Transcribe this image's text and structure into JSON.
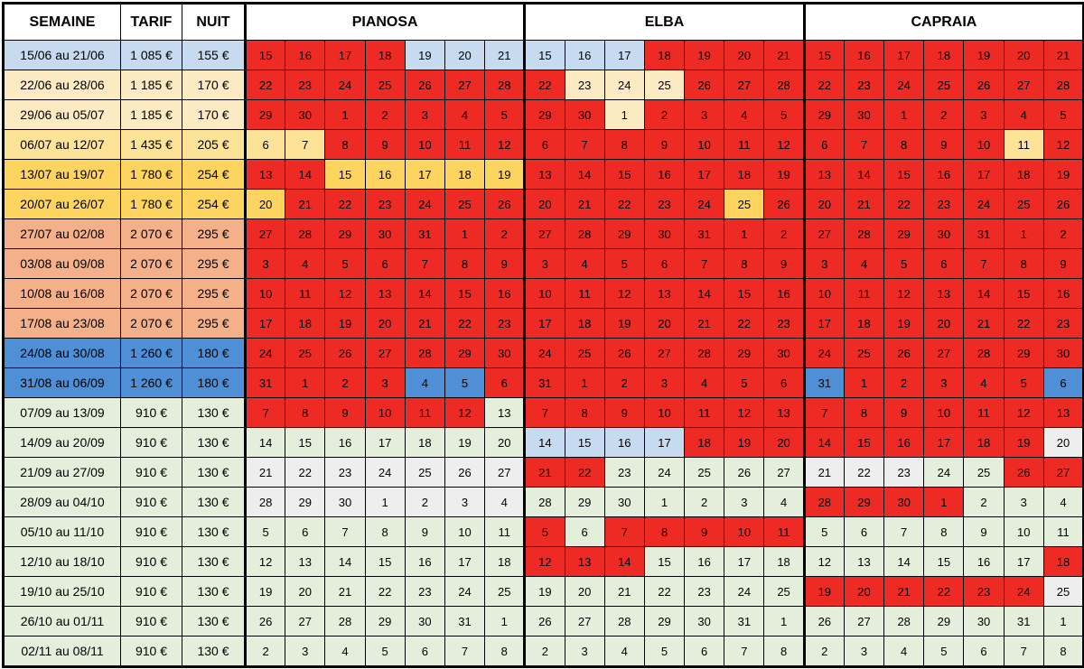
{
  "headers": {
    "week": "SEMAINE",
    "rate": "TARIF",
    "night": "NUIT"
  },
  "rooms": [
    "PIANOSA",
    "ELBA",
    "CAPRAIA"
  ],
  "colors": {
    "R": "#ee2a24",
    "lb": "#c6daf0",
    "cr": "#fcebc2",
    "y1": "#fde397",
    "y2": "#fcd45f",
    "or": "#f4b189",
    "bl": "#4f8fd6",
    "g": "#e3efda",
    "w": "#eeeeee"
  },
  "rows": [
    {
      "week": "15/06 au 21/06",
      "rate": "1 085 €",
      "night": "155 €",
      "color": "lb",
      "days": [
        "15",
        "16",
        "17",
        "18",
        "19",
        "20",
        "21"
      ],
      "status": [
        [
          "R",
          "R",
          "R",
          "R",
          "lb",
          "lb",
          "lb"
        ],
        [
          "lb",
          "lb",
          "lb",
          "R",
          "R",
          "R",
          "R"
        ],
        [
          "R",
          "R",
          "R",
          "R",
          "R",
          "R",
          "R"
        ]
      ]
    },
    {
      "week": "22/06 au 28/06",
      "rate": "1 185 €",
      "night": "170 €",
      "color": "cr",
      "days": [
        "22",
        "23",
        "24",
        "25",
        "26",
        "27",
        "28"
      ],
      "status": [
        [
          "R",
          "R",
          "R",
          "R",
          "R",
          "R",
          "R"
        ],
        [
          "R",
          "cr",
          "cr",
          "cr",
          "R",
          "R",
          "R"
        ],
        [
          "R",
          "R",
          "R",
          "R",
          "R",
          "R",
          "R"
        ]
      ]
    },
    {
      "week": "29/06 au 05/07",
      "rate": "1 185 €",
      "night": "170 €",
      "color": "cr",
      "days": [
        "29",
        "30",
        "1",
        "2",
        "3",
        "4",
        "5"
      ],
      "status": [
        [
          "R",
          "R",
          "R",
          "R",
          "R",
          "R",
          "R"
        ],
        [
          "R",
          "R",
          "cr",
          "R",
          "R",
          "R",
          "R"
        ],
        [
          "R",
          "R",
          "R",
          "R",
          "R",
          "R",
          "R"
        ]
      ]
    },
    {
      "week": "06/07 au 12/07",
      "rate": "1 435 €",
      "night": "205 €",
      "color": "y1",
      "days": [
        "6",
        "7",
        "8",
        "9",
        "10",
        "11",
        "12"
      ],
      "status": [
        [
          "y1",
          "y1",
          "R",
          "R",
          "R",
          "R",
          "R"
        ],
        [
          "R",
          "R",
          "R",
          "R",
          "R",
          "R",
          "R"
        ],
        [
          "R",
          "R",
          "R",
          "R",
          "R",
          "y1",
          "R"
        ]
      ]
    },
    {
      "week": "13/07 au 19/07",
      "rate": "1 780 €",
      "night": "254 €",
      "color": "y2",
      "days": [
        "13",
        "14",
        "15",
        "16",
        "17",
        "18",
        "19"
      ],
      "status": [
        [
          "R",
          "R",
          "y2",
          "y2",
          "y2",
          "y2",
          "y2"
        ],
        [
          "R",
          "R",
          "R",
          "R",
          "R",
          "R",
          "R"
        ],
        [
          "R",
          "R",
          "R",
          "R",
          "R",
          "R",
          "R"
        ]
      ]
    },
    {
      "week": "20/07 au 26/07",
      "rate": "1 780 €",
      "night": "254 €",
      "color": "y2",
      "days": [
        "20",
        "21",
        "22",
        "23",
        "24",
        "25",
        "26"
      ],
      "status": [
        [
          "y2",
          "R",
          "R",
          "R",
          "R",
          "R",
          "R"
        ],
        [
          "R",
          "R",
          "R",
          "R",
          "R",
          "y2",
          "R"
        ],
        [
          "R",
          "R",
          "R",
          "R",
          "R",
          "R",
          "R"
        ]
      ]
    },
    {
      "week": "27/07 au 02/08",
      "rate": "2 070 €",
      "night": "295 €",
      "color": "or",
      "days": [
        "27",
        "28",
        "29",
        "30",
        "31",
        "1",
        "2"
      ],
      "status": [
        [
          "R",
          "R",
          "R",
          "R",
          "R",
          "R",
          "R"
        ],
        [
          "R",
          "R",
          "R",
          "R",
          "R",
          "R",
          "R"
        ],
        [
          "R",
          "R",
          "R",
          "R",
          "R",
          "R",
          "R"
        ]
      ]
    },
    {
      "week": "03/08 au 09/08",
      "rate": "2 070 €",
      "night": "295 €",
      "color": "or",
      "days": [
        "3",
        "4",
        "5",
        "6",
        "7",
        "8",
        "9"
      ],
      "status": [
        [
          "R",
          "R",
          "R",
          "R",
          "R",
          "R",
          "R"
        ],
        [
          "R",
          "R",
          "R",
          "R",
          "R",
          "R",
          "R"
        ],
        [
          "R",
          "R",
          "R",
          "R",
          "R",
          "R",
          "R"
        ]
      ]
    },
    {
      "week": "10/08 au 16/08",
      "rate": "2 070 €",
      "night": "295 €",
      "color": "or",
      "days": [
        "10",
        "11",
        "12",
        "13",
        "14",
        "15",
        "16"
      ],
      "status": [
        [
          "R",
          "R",
          "R",
          "R",
          "R",
          "R",
          "R"
        ],
        [
          "R",
          "R",
          "R",
          "R",
          "R",
          "R",
          "R"
        ],
        [
          "R",
          "R",
          "R",
          "R",
          "R",
          "R",
          "R"
        ]
      ]
    },
    {
      "week": "17/08 au 23/08",
      "rate": "2 070 €",
      "night": "295 €",
      "color": "or",
      "days": [
        "17",
        "18",
        "19",
        "20",
        "21",
        "22",
        "23"
      ],
      "status": [
        [
          "R",
          "R",
          "R",
          "R",
          "R",
          "R",
          "R"
        ],
        [
          "R",
          "R",
          "R",
          "R",
          "R",
          "R",
          "R"
        ],
        [
          "R",
          "R",
          "R",
          "R",
          "R",
          "R",
          "R"
        ]
      ]
    },
    {
      "week": "24/08 au 30/08",
      "rate": "1 260 €",
      "night": "180 €",
      "color": "bl",
      "days": [
        "24",
        "25",
        "26",
        "27",
        "28",
        "29",
        "30"
      ],
      "status": [
        [
          "R",
          "R",
          "R",
          "R",
          "R",
          "R",
          "R"
        ],
        [
          "R",
          "R",
          "R",
          "R",
          "R",
          "R",
          "R"
        ],
        [
          "R",
          "R",
          "R",
          "R",
          "R",
          "R",
          "R"
        ]
      ]
    },
    {
      "week": "31/08 au 06/09",
      "rate": "1 260 €",
      "night": "180 €",
      "color": "bl",
      "days": [
        "31",
        "1",
        "2",
        "3",
        "4",
        "5",
        "6"
      ],
      "status": [
        [
          "R",
          "R",
          "R",
          "R",
          "bl",
          "bl",
          "R"
        ],
        [
          "R",
          "R",
          "R",
          "R",
          "R",
          "R",
          "R"
        ],
        [
          "bl",
          "R",
          "R",
          "R",
          "R",
          "R",
          "bl"
        ]
      ]
    },
    {
      "week": "07/09 au 13/09",
      "rate": "910 €",
      "night": "130 €",
      "color": "g",
      "days": [
        "7",
        "8",
        "9",
        "10",
        "11",
        "12",
        "13"
      ],
      "status": [
        [
          "R",
          "R",
          "R",
          "R",
          "R",
          "R",
          "g"
        ],
        [
          "R",
          "R",
          "R",
          "R",
          "R",
          "R",
          "R"
        ],
        [
          "R",
          "R",
          "R",
          "R",
          "R",
          "R",
          "R"
        ]
      ]
    },
    {
      "week": "14/09 au 20/09",
      "rate": "910 €",
      "night": "130 €",
      "color": "g",
      "days": [
        "14",
        "15",
        "16",
        "17",
        "18",
        "19",
        "20"
      ],
      "status": [
        [
          "g",
          "g",
          "g",
          "g",
          "g",
          "g",
          "g"
        ],
        [
          "lb",
          "lb",
          "lb",
          "lb",
          "R",
          "R",
          "R"
        ],
        [
          "R",
          "R",
          "R",
          "R",
          "R",
          "R",
          "w"
        ]
      ]
    },
    {
      "week": "21/09 au 27/09",
      "rate": "910 €",
      "night": "130 €",
      "color": "g",
      "days": [
        "21",
        "22",
        "23",
        "24",
        "25",
        "26",
        "27"
      ],
      "status": [
        [
          "w",
          "w",
          "w",
          "w",
          "w",
          "w",
          "w"
        ],
        [
          "R",
          "R",
          "g",
          "g",
          "g",
          "g",
          "g"
        ],
        [
          "w",
          "w",
          "w",
          "g",
          "g",
          "R",
          "R"
        ]
      ]
    },
    {
      "week": "28/09 au 04/10",
      "rate": "910 €",
      "night": "130 €",
      "color": "g",
      "days": [
        "28",
        "29",
        "30",
        "1",
        "2",
        "3",
        "4"
      ],
      "status": [
        [
          "w",
          "w",
          "w",
          "w",
          "w",
          "w",
          "w"
        ],
        [
          "g",
          "g",
          "g",
          "g",
          "g",
          "g",
          "g"
        ],
        [
          "R",
          "R",
          "R",
          "R",
          "g",
          "g",
          "g"
        ]
      ]
    },
    {
      "week": "05/10 au 11/10",
      "rate": "910 €",
      "night": "130 €",
      "color": "g",
      "days": [
        "5",
        "6",
        "7",
        "8",
        "9",
        "10",
        "11"
      ],
      "status": [
        [
          "g",
          "g",
          "g",
          "g",
          "g",
          "g",
          "g"
        ],
        [
          "R",
          "g",
          "R",
          "R",
          "R",
          "R",
          "R"
        ],
        [
          "g",
          "g",
          "g",
          "g",
          "g",
          "g",
          "g"
        ]
      ]
    },
    {
      "week": "12/10 au 18/10",
      "rate": "910 €",
      "night": "130 €",
      "color": "g",
      "days": [
        "12",
        "13",
        "14",
        "15",
        "16",
        "17",
        "18"
      ],
      "status": [
        [
          "g",
          "g",
          "g",
          "g",
          "g",
          "g",
          "g"
        ],
        [
          "R",
          "R",
          "R",
          "g",
          "g",
          "g",
          "g"
        ],
        [
          "g",
          "g",
          "g",
          "g",
          "g",
          "g",
          "R"
        ]
      ]
    },
    {
      "week": "19/10 au 25/10",
      "rate": "910 €",
      "night": "130 €",
      "color": "g",
      "days": [
        "19",
        "20",
        "21",
        "22",
        "23",
        "24",
        "25"
      ],
      "status": [
        [
          "g",
          "g",
          "g",
          "g",
          "g",
          "g",
          "g"
        ],
        [
          "g",
          "g",
          "g",
          "g",
          "g",
          "g",
          "g"
        ],
        [
          "R",
          "R",
          "R",
          "R",
          "R",
          "R",
          "w"
        ]
      ]
    },
    {
      "week": "26/10 au 01/11",
      "rate": "910 €",
      "night": "130 €",
      "color": "g",
      "days": [
        "26",
        "27",
        "28",
        "29",
        "30",
        "31",
        "1"
      ],
      "status": [
        [
          "g",
          "g",
          "g",
          "g",
          "g",
          "g",
          "g"
        ],
        [
          "g",
          "g",
          "g",
          "g",
          "g",
          "g",
          "g"
        ],
        [
          "g",
          "g",
          "g",
          "g",
          "g",
          "g",
          "g"
        ]
      ]
    },
    {
      "week": "02/11 au 08/11",
      "rate": "910 €",
      "night": "130 €",
      "color": "g",
      "days": [
        "2",
        "3",
        "4",
        "5",
        "6",
        "7",
        "8"
      ],
      "status": [
        [
          "g",
          "g",
          "g",
          "g",
          "g",
          "g",
          "g"
        ],
        [
          "g",
          "g",
          "g",
          "g",
          "g",
          "g",
          "g"
        ],
        [
          "g",
          "g",
          "g",
          "g",
          "g",
          "g",
          "g"
        ]
      ]
    }
  ]
}
